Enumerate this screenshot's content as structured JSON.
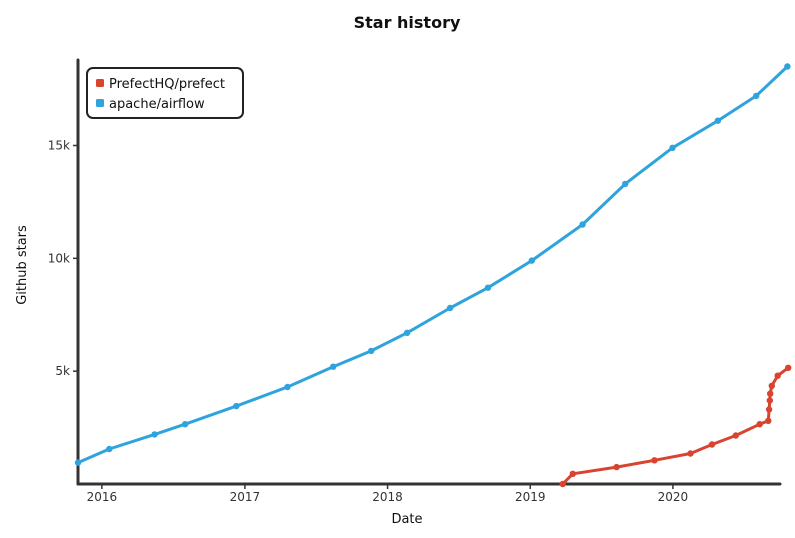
{
  "chart_data": {
    "type": "line",
    "title": "Star history",
    "xlabel": "Date",
    "ylabel": "Github stars",
    "xlim": [
      "2015-11-01",
      "2020-10-01"
    ],
    "ylim": [
      0,
      18700
    ],
    "x_ticks": [
      "2016",
      "2017",
      "2018",
      "2019",
      "2020"
    ],
    "y_ticks": [
      "5k",
      "10k",
      "15k"
    ],
    "legend_position": "top-left",
    "grid": false,
    "series": [
      {
        "name": "PrefectHQ/prefect",
        "color": "#d9432f",
        "points": [
          {
            "x": "2019-03-25",
            "y": 0
          },
          {
            "x": "2019-04-20",
            "y": 450
          },
          {
            "x": "2019-08-10",
            "y": 750
          },
          {
            "x": "2019-11-15",
            "y": 1050
          },
          {
            "x": "2020-02-15",
            "y": 1350
          },
          {
            "x": "2020-04-10",
            "y": 1750
          },
          {
            "x": "2020-06-10",
            "y": 2150
          },
          {
            "x": "2020-08-10",
            "y": 2650
          },
          {
            "x": "2020-09-01",
            "y": 2800
          },
          {
            "x": "2020-09-03",
            "y": 3300
          },
          {
            "x": "2020-09-05",
            "y": 3700
          },
          {
            "x": "2020-09-06",
            "y": 4000
          },
          {
            "x": "2020-09-10",
            "y": 4350
          },
          {
            "x": "2020-09-25",
            "y": 4800
          },
          {
            "x": "2020-10-22",
            "y": 5150
          }
        ]
      },
      {
        "name": "apache/airflow",
        "color": "#2ea3dc",
        "points": [
          {
            "x": "2015-11-01",
            "y": 950
          },
          {
            "x": "2016-01-20",
            "y": 1550
          },
          {
            "x": "2016-05-15",
            "y": 2200
          },
          {
            "x": "2016-08-01",
            "y": 2650
          },
          {
            "x": "2016-12-10",
            "y": 3450
          },
          {
            "x": "2017-04-20",
            "y": 4300
          },
          {
            "x": "2017-08-15",
            "y": 5200
          },
          {
            "x": "2017-11-20",
            "y": 5900
          },
          {
            "x": "2018-02-20",
            "y": 6700
          },
          {
            "x": "2018-06-10",
            "y": 7800
          },
          {
            "x": "2018-09-15",
            "y": 8700
          },
          {
            "x": "2019-01-05",
            "y": 9900
          },
          {
            "x": "2019-05-15",
            "y": 11500
          },
          {
            "x": "2019-09-01",
            "y": 13300
          },
          {
            "x": "2019-12-31",
            "y": 14900
          },
          {
            "x": "2020-04-25",
            "y": 16100
          },
          {
            "x": "2020-08-01",
            "y": 17200
          },
          {
            "x": "2020-10-20",
            "y": 18500
          }
        ]
      }
    ]
  }
}
